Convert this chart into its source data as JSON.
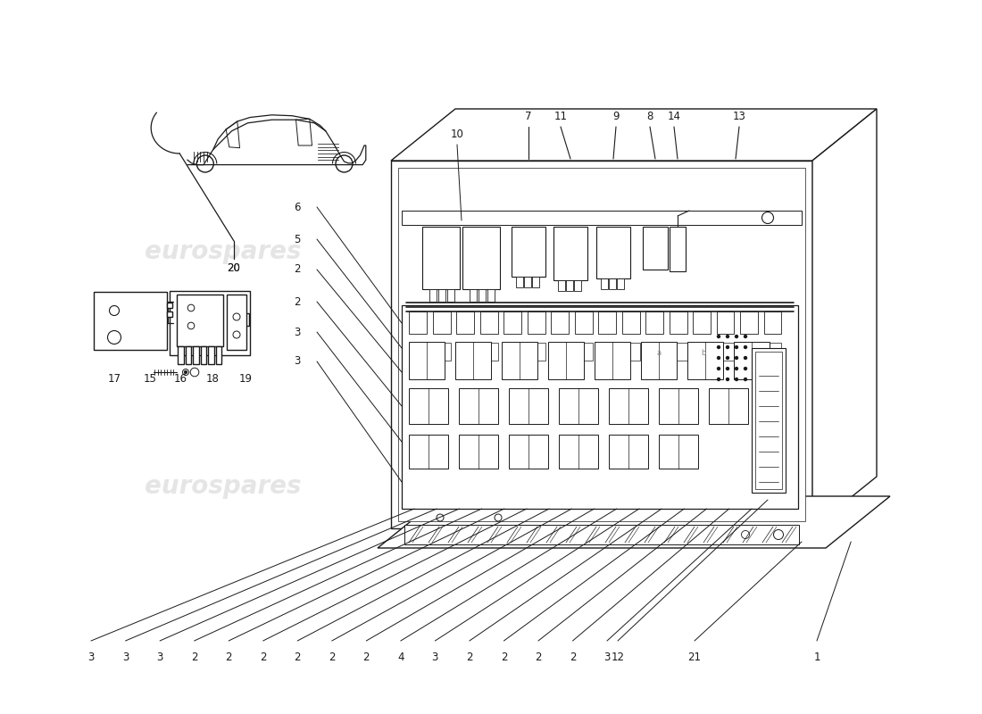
{
  "bg_color": "#ffffff",
  "line_color": "#1a1a1a",
  "watermark_color": "#cccccc",
  "watermark_text": "eurospares",
  "bottom_labels": [
    "3",
    "3",
    "3",
    "2",
    "2",
    "2",
    "2",
    "2",
    "2",
    "4",
    "3",
    "2",
    "2",
    "2",
    "2",
    "3",
    "12",
    "21",
    "1"
  ],
  "left_labels": [
    "6",
    "5",
    "2",
    "2",
    "3",
    "3"
  ],
  "top_labels": [
    [
      "7",
      5.62,
      6.52
    ],
    [
      "11",
      5.92,
      6.52
    ],
    [
      "9",
      6.25,
      6.52
    ],
    [
      "8",
      6.58,
      6.52
    ],
    [
      "14",
      6.95,
      6.52
    ],
    [
      "13",
      7.35,
      6.52
    ]
  ],
  "label_10": [
    5.12,
    6.52
  ],
  "label_20": [
    2.62,
    5.22
  ],
  "parts_labels": [
    [
      "17",
      1.28,
      3.72
    ],
    [
      "15",
      1.68,
      3.72
    ],
    [
      "16",
      2.02,
      3.72
    ],
    [
      "18",
      2.38,
      3.72
    ],
    [
      "19",
      2.75,
      3.72
    ]
  ]
}
